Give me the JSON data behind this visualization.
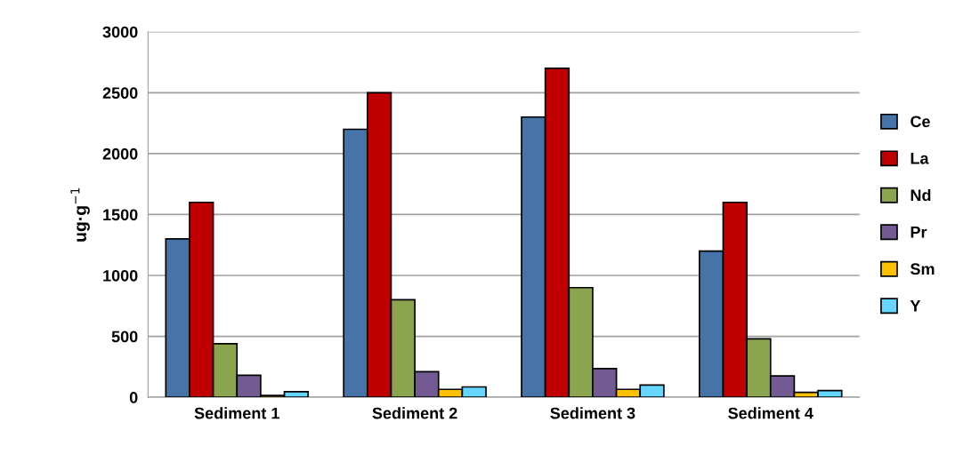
{
  "chart_data": {
    "type": "bar",
    "ylabel": "ug·g$^{−1}$",
    "categories": [
      "Sediment 1",
      "Sediment 2",
      "Sediment 3",
      "Sediment 4"
    ],
    "series": [
      {
        "name": "Ce",
        "color": "#4673a8",
        "values": [
          1300,
          2200,
          2300,
          1200
        ]
      },
      {
        "name": "La",
        "color": "#c00000",
        "values": [
          1600,
          2500,
          2700,
          1600
        ]
      },
      {
        "name": "Nd",
        "color": "#8ba54f",
        "values": [
          440,
          800,
          900,
          480
        ]
      },
      {
        "name": "Pr",
        "color": "#735a92",
        "values": [
          180,
          210,
          235,
          175
        ]
      },
      {
        "name": "Sm",
        "color": "#ffc000",
        "values": [
          15,
          65,
          65,
          40
        ]
      },
      {
        "name": "Y",
        "color": "#66d6ff",
        "values": [
          45,
          85,
          100,
          55
        ]
      }
    ],
    "ylim": [
      0,
      3000
    ],
    "yticks": [
      0,
      500,
      1000,
      1500,
      2000,
      2500,
      3000
    ],
    "grid": "y",
    "legend": "right"
  }
}
